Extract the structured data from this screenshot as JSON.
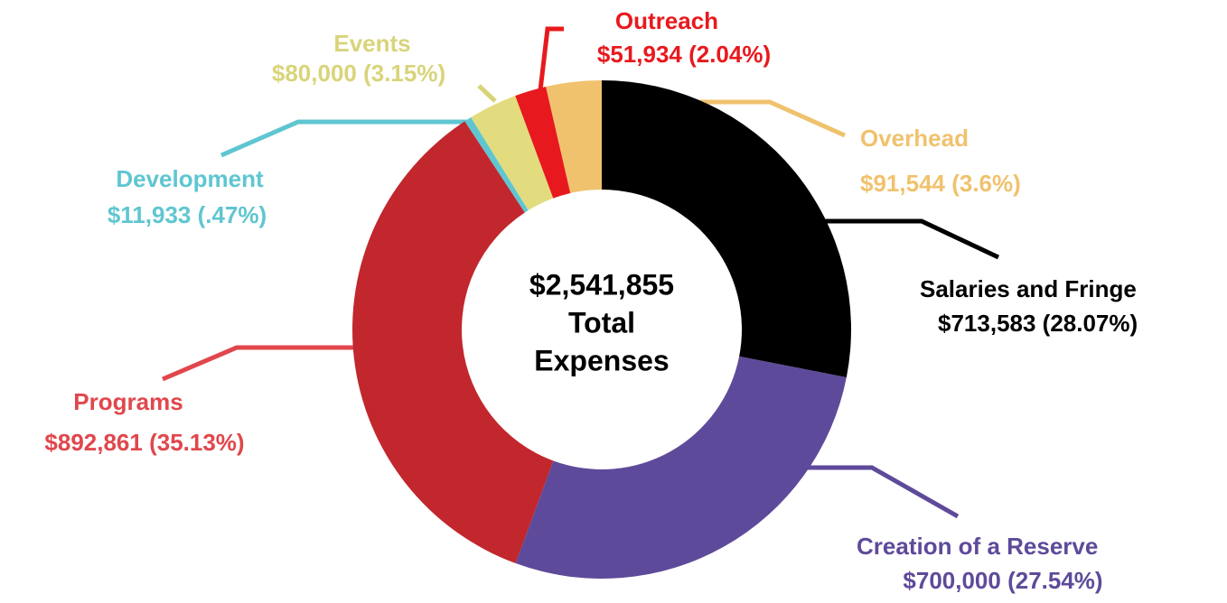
{
  "chart_data": {
    "type": "donut",
    "center_lines": [
      "$2,541,855",
      "Total",
      "Expenses"
    ],
    "categories": [
      "Salaries and Fringe",
      "Creation of a Reserve",
      "Programs",
      "Development",
      "Events",
      "Outreach",
      "Overhead"
    ],
    "values": [
      713583,
      700000,
      892861,
      11933,
      80000,
      51934,
      91544
    ],
    "value_labels": [
      "$713,583  (28.07%)",
      "$700,000 (27.54%)",
      "$892,861  (35.13%)",
      "$11,933  (.47%)",
      "$80,000  (3.15%)",
      "$51,934  (2.04%)",
      "$91,544  (3.6%)"
    ],
    "colors": [
      "#000000",
      "#5e4a9a",
      "#c1272d",
      "#5fc6d1",
      "#e2dc7e",
      "#e8191e",
      "#f0c26e"
    ],
    "label_colors": [
      "#000000",
      "#5e4a9a",
      "#e0474c",
      "#5fc6d1",
      "#d9d47a",
      "#e8191e",
      "#f0c26e"
    ]
  }
}
